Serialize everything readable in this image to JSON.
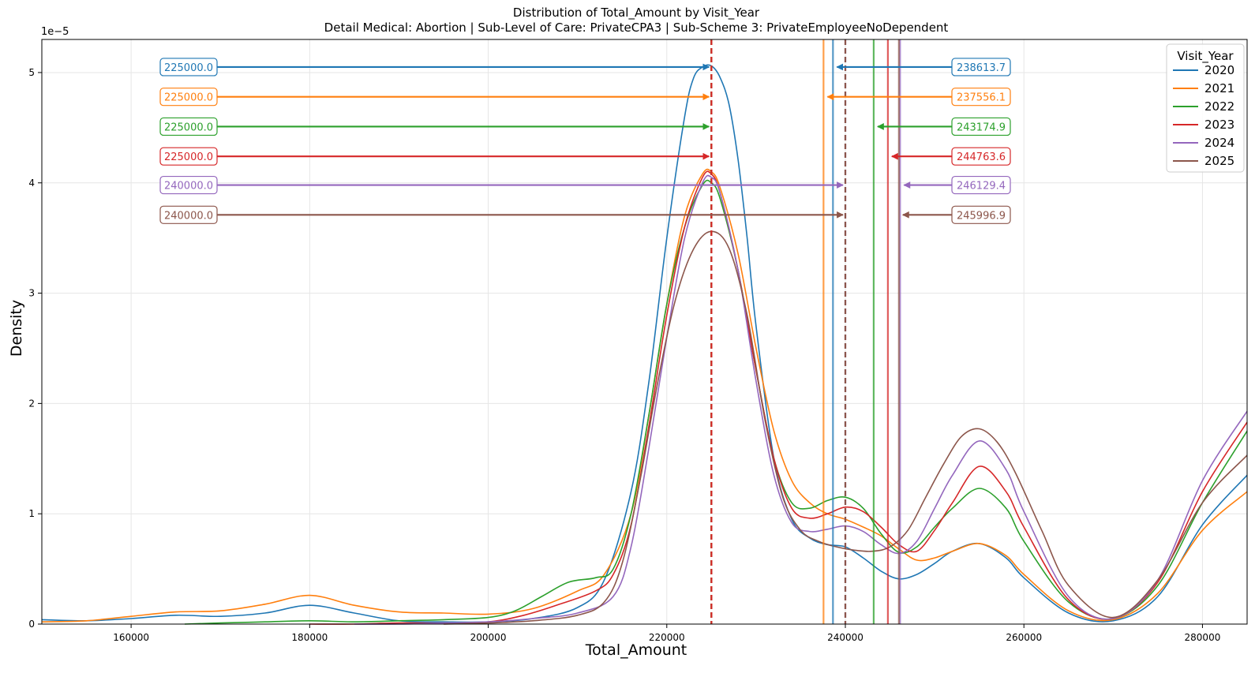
{
  "chart_data": {
    "type": "line",
    "title": "Distribution of Total_Amount by Visit_Year",
    "subtitle": "Detail Medical: Abortion | Sub-Level of Care: PrivateCPA3 | Sub-Scheme 3: PrivateEmployeeNoDependent",
    "xlabel": "Total_Amount",
    "ylabel": "Density",
    "y_multiplier_label": "1e−5",
    "xlim": [
      150000,
      285000
    ],
    "ylim": [
      0,
      5.3
    ],
    "x_ticks": [
      160000,
      180000,
      200000,
      220000,
      240000,
      260000,
      280000
    ],
    "y_ticks": [
      0,
      1,
      2,
      3,
      4,
      5
    ],
    "grid": true,
    "legend": {
      "title": "Visit_Year",
      "placement": "top-right"
    },
    "series": [
      {
        "name": "2020",
        "color": "#1f77b4",
        "median": 225000.0,
        "mean": 238613.7,
        "median_label": "225000.0",
        "mean_label": "238613.7",
        "x": [
          150000,
          155000,
          160000,
          165000,
          170000,
          175000,
          180000,
          185000,
          190000,
          195000,
          200000,
          205000,
          210000,
          213000,
          216000,
          218000,
          220000,
          222000,
          223000,
          224000,
          225000,
          226000,
          227000,
          228000,
          229000,
          230000,
          232000,
          234000,
          236000,
          238000,
          240000,
          242000,
          244000,
          246000,
          248000,
          250000,
          252000,
          255000,
          258000,
          260000,
          265000,
          270000,
          275000,
          280000,
          285000
        ],
        "y": [
          0.04,
          0.03,
          0.05,
          0.08,
          0.07,
          0.1,
          0.17,
          0.1,
          0.03,
          0.02,
          0.02,
          0.05,
          0.15,
          0.4,
          1.2,
          2.2,
          3.5,
          4.6,
          4.95,
          5.05,
          5.06,
          4.95,
          4.7,
          4.2,
          3.5,
          2.7,
          1.5,
          0.95,
          0.78,
          0.72,
          0.7,
          0.6,
          0.48,
          0.41,
          0.45,
          0.55,
          0.66,
          0.73,
          0.6,
          0.42,
          0.1,
          0.03,
          0.25,
          0.9,
          1.35
        ]
      },
      {
        "name": "2021",
        "color": "#ff7f0e",
        "median": 225000.0,
        "mean": 237556.1,
        "median_label": "225000.0",
        "mean_label": "237556.1",
        "x": [
          150000,
          155000,
          160000,
          165000,
          170000,
          175000,
          180000,
          185000,
          190000,
          195000,
          200000,
          205000,
          210000,
          213000,
          216000,
          218000,
          220000,
          222000,
          224000,
          225000,
          226000,
          228000,
          230000,
          232000,
          234000,
          236000,
          238000,
          240000,
          242000,
          244000,
          246000,
          248000,
          250000,
          252000,
          255000,
          258000,
          260000,
          265000,
          270000,
          275000,
          280000,
          285000
        ],
        "y": [
          0.02,
          0.03,
          0.07,
          0.11,
          0.12,
          0.18,
          0.26,
          0.17,
          0.11,
          0.1,
          0.09,
          0.14,
          0.3,
          0.45,
          1.0,
          1.9,
          2.9,
          3.7,
          4.08,
          4.1,
          3.95,
          3.35,
          2.5,
          1.75,
          1.3,
          1.1,
          1.0,
          0.95,
          0.88,
          0.8,
          0.68,
          0.58,
          0.6,
          0.66,
          0.73,
          0.62,
          0.45,
          0.12,
          0.04,
          0.28,
          0.85,
          1.2
        ]
      },
      {
        "name": "2022",
        "color": "#2ca02c",
        "median": 225000.0,
        "mean": 243174.9,
        "median_label": "225000.0",
        "mean_label": "243174.9",
        "x": [
          166000,
          170000,
          175000,
          180000,
          185000,
          190000,
          195000,
          200000,
          203000,
          206000,
          209000,
          212000,
          214000,
          216000,
          218000,
          220000,
          222000,
          224000,
          225000,
          226000,
          228000,
          230000,
          232000,
          234000,
          236000,
          238000,
          240000,
          242000,
          244000,
          246000,
          248000,
          250000,
          252000,
          255000,
          258000,
          260000,
          265000,
          270000,
          275000,
          280000,
          285000
        ],
        "y": [
          0.0,
          0.01,
          0.02,
          0.03,
          0.02,
          0.03,
          0.04,
          0.06,
          0.12,
          0.25,
          0.38,
          0.42,
          0.5,
          1.0,
          1.9,
          2.9,
          3.6,
          3.98,
          4.0,
          3.85,
          3.2,
          2.3,
          1.5,
          1.1,
          1.05,
          1.12,
          1.15,
          1.05,
          0.82,
          0.65,
          0.7,
          0.88,
          1.05,
          1.23,
          1.05,
          0.75,
          0.2,
          0.05,
          0.35,
          1.1,
          1.75
        ]
      },
      {
        "name": "2023",
        "color": "#d62728",
        "median": 225000.0,
        "mean": 244763.6,
        "median_label": "225000.0",
        "mean_label": "244763.6",
        "x": [
          180000,
          185000,
          190000,
          195000,
          200000,
          204000,
          208000,
          212000,
          214000,
          216000,
          218000,
          220000,
          222000,
          224000,
          225000,
          226000,
          228000,
          230000,
          232000,
          234000,
          236000,
          238000,
          240000,
          242000,
          244000,
          246000,
          248000,
          250000,
          252000,
          255000,
          258000,
          260000,
          265000,
          270000,
          275000,
          280000,
          285000
        ],
        "y": [
          0.0,
          0.0,
          0.01,
          0.01,
          0.02,
          0.08,
          0.18,
          0.3,
          0.45,
          0.9,
          1.8,
          2.8,
          3.6,
          4.05,
          4.08,
          3.9,
          3.2,
          2.3,
          1.5,
          1.05,
          0.96,
          1.0,
          1.06,
          1.02,
          0.88,
          0.72,
          0.66,
          0.85,
          1.1,
          1.43,
          1.2,
          0.88,
          0.22,
          0.05,
          0.38,
          1.2,
          1.83
        ]
      },
      {
        "name": "2024",
        "color": "#9467bd",
        "median": 240000.0,
        "mean": 246129.4,
        "median_label": "240000.0",
        "mean_label": "246129.4",
        "x": [
          185000,
          190000,
          195000,
          200000,
          205000,
          210000,
          214000,
          216000,
          218000,
          220000,
          222000,
          224000,
          225000,
          226000,
          228000,
          230000,
          232000,
          234000,
          236000,
          238000,
          240000,
          242000,
          244000,
          246000,
          248000,
          250000,
          252000,
          255000,
          258000,
          260000,
          265000,
          270000,
          275000,
          280000,
          285000
        ],
        "y": [
          0.0,
          0.0,
          0.01,
          0.02,
          0.05,
          0.1,
          0.25,
          0.7,
          1.6,
          2.6,
          3.5,
          4.0,
          4.05,
          3.9,
          3.2,
          2.2,
          1.35,
          0.92,
          0.84,
          0.86,
          0.89,
          0.84,
          0.72,
          0.64,
          0.75,
          1.05,
          1.35,
          1.66,
          1.4,
          1.02,
          0.25,
          0.05,
          0.4,
          1.3,
          1.93
        ]
      },
      {
        "name": "2025",
        "color": "#8c564b",
        "median": 240000.0,
        "mean": 245996.9,
        "median_label": "240000.0",
        "mean_label": "245996.9",
        "x": [
          195000,
          200000,
          205000,
          210000,
          213000,
          215000,
          217000,
          219000,
          221000,
          223000,
          225000,
          227000,
          229000,
          231000,
          233000,
          235000,
          237000,
          239000,
          241000,
          243000,
          245000,
          247000,
          249000,
          251000,
          253000,
          255000,
          257000,
          259000,
          262000,
          265000,
          270000,
          275000,
          280000,
          285000
        ],
        "y": [
          0.0,
          0.01,
          0.03,
          0.08,
          0.2,
          0.55,
          1.3,
          2.2,
          2.95,
          3.4,
          3.56,
          3.4,
          2.8,
          1.85,
          1.15,
          0.85,
          0.75,
          0.7,
          0.67,
          0.66,
          0.7,
          0.85,
          1.15,
          1.45,
          1.7,
          1.77,
          1.65,
          1.38,
          0.85,
          0.35,
          0.06,
          0.4,
          1.1,
          1.53
        ]
      }
    ]
  }
}
